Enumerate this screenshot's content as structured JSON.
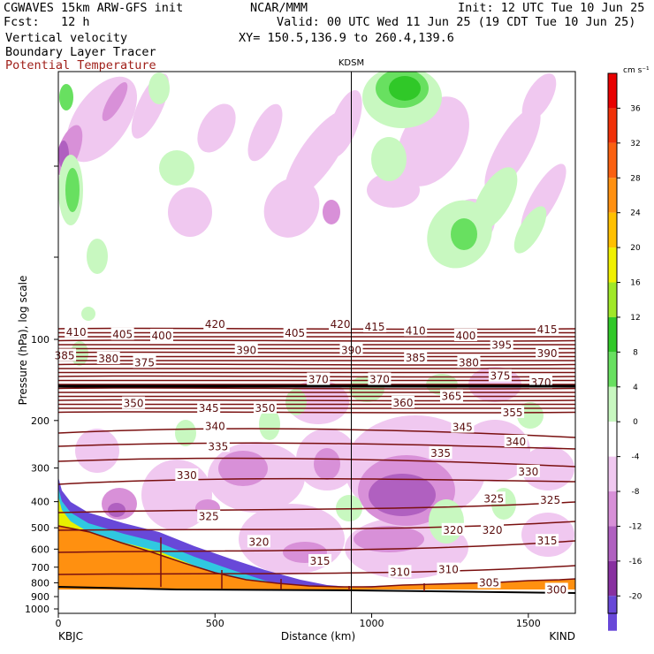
{
  "header": {
    "model": "CGWAVES 15km ARW-GFS init",
    "fcst": "Fcst:   12 h",
    "var1": "Vertical velocity",
    "var2": "Boundary Layer Tracer",
    "var3": "Potential Temperature",
    "org": "NCAR/MMM",
    "valid": "Valid: 00 UTC Wed 11 Jun 25 (19 CDT Tue 10 Jun 25)",
    "xy": "XY= 150.5,136.9 to 260.4,139.6",
    "init": "Init: 12 UTC Tue 10 Jun 25"
  },
  "chart_data": {
    "type": "heatmap",
    "xlabel": "Distance (km)",
    "ylabel": "Pressure (hPa), log scale",
    "x_ticks": [
      "0",
      "500",
      "1000",
      "1500"
    ],
    "x_tick_values": [
      0,
      500,
      1000,
      1500
    ],
    "xlim": [
      0,
      1650
    ],
    "y_ticks": [
      "100",
      "200",
      "300",
      "400",
      "500",
      "600",
      "700",
      "800",
      "900",
      "1000"
    ],
    "y_tick_values": [
      100,
      200,
      300,
      400,
      500,
      600,
      700,
      800,
      900,
      1000
    ],
    "y_scale": "log",
    "station_left": "KBJC",
    "station_right": "KIND",
    "station_mid": "KDSM",
    "station_mid_km": 935,
    "colorbar": {
      "unit": "cm s⁻¹",
      "ticks": [
        "36",
        "32",
        "28",
        "24",
        "20",
        "16",
        "12",
        "8",
        "4",
        "0",
        "-4",
        "-8",
        "-12",
        "-16",
        "-20"
      ],
      "tick_values": [
        36,
        32,
        28,
        24,
        20,
        16,
        12,
        8,
        4,
        0,
        -4,
        -8,
        -12,
        -16,
        -20
      ],
      "range": [
        -22,
        40
      ],
      "colors": {
        "38": "#e80000",
        "34": "#f03008",
        "30": "#fa6010",
        "26": "#ff9010",
        "22": "#ffc000",
        "18": "#f0f000",
        "14": "#a0e828",
        "10": "#30c828",
        "6": "#68e060",
        "2": "#c8f8c0",
        "-2": "#ffffff",
        "-6": "#f0c8f0",
        "-10": "#d890d8",
        "-14": "#b060c0",
        "-18": "#8830a0",
        "-22": "#6848d8"
      }
    },
    "theta_labels": [
      {
        "x": 57,
        "p": 94,
        "text": "410"
      },
      {
        "x": 205,
        "p": 96,
        "text": "405"
      },
      {
        "x": 330,
        "p": 97,
        "text": "400"
      },
      {
        "x": 500,
        "p": 88,
        "text": "420"
      },
      {
        "x": 755,
        "p": 95,
        "text": "405"
      },
      {
        "x": 900,
        "p": 88,
        "text": "420"
      },
      {
        "x": 1010,
        "p": 90,
        "text": "415"
      },
      {
        "x": 1140,
        "p": 93,
        "text": "410"
      },
      {
        "x": 1300,
        "p": 97,
        "text": "400"
      },
      {
        "x": 1560,
        "p": 92,
        "text": "415"
      },
      {
        "x": 20,
        "p": 115,
        "text": "385"
      },
      {
        "x": 160,
        "p": 118,
        "text": "380"
      },
      {
        "x": 275,
        "p": 122,
        "text": "375"
      },
      {
        "x": 600,
        "p": 110,
        "text": "390"
      },
      {
        "x": 935,
        "p": 110,
        "text": "390"
      },
      {
        "x": 1140,
        "p": 117,
        "text": "385"
      },
      {
        "x": 1310,
        "p": 122,
        "text": "380"
      },
      {
        "x": 1415,
        "p": 105,
        "text": "395"
      },
      {
        "x": 1560,
        "p": 113,
        "text": "390"
      },
      {
        "x": 830,
        "p": 141,
        "text": "370"
      },
      {
        "x": 1025,
        "p": 141,
        "text": "370"
      },
      {
        "x": 1410,
        "p": 137,
        "text": "375"
      },
      {
        "x": 1540,
        "p": 145,
        "text": "370"
      },
      {
        "x": 240,
        "p": 173,
        "text": "350"
      },
      {
        "x": 480,
        "p": 180,
        "text": "345"
      },
      {
        "x": 660,
        "p": 180,
        "text": "350"
      },
      {
        "x": 1100,
        "p": 172,
        "text": "360"
      },
      {
        "x": 1255,
        "p": 163,
        "text": "365"
      },
      {
        "x": 1450,
        "p": 187,
        "text": "355"
      },
      {
        "x": 500,
        "p": 210,
        "text": "340"
      },
      {
        "x": 1290,
        "p": 212,
        "text": "345"
      },
      {
        "x": 1460,
        "p": 240,
        "text": "340"
      },
      {
        "x": 510,
        "p": 250,
        "text": "335"
      },
      {
        "x": 1220,
        "p": 265,
        "text": "335"
      },
      {
        "x": 410,
        "p": 320,
        "text": "330"
      },
      {
        "x": 1500,
        "p": 310,
        "text": "330"
      },
      {
        "x": 480,
        "p": 455,
        "text": "325"
      },
      {
        "x": 1390,
        "p": 390,
        "text": "325"
      },
      {
        "x": 1570,
        "p": 395,
        "text": "325"
      },
      {
        "x": 640,
        "p": 565,
        "text": "320"
      },
      {
        "x": 1260,
        "p": 510,
        "text": "320"
      },
      {
        "x": 1385,
        "p": 510,
        "text": "320"
      },
      {
        "x": 1560,
        "p": 560,
        "text": "315"
      },
      {
        "x": 835,
        "p": 665,
        "text": "315"
      },
      {
        "x": 1090,
        "p": 730,
        "text": "310"
      },
      {
        "x": 1245,
        "p": 715,
        "text": "310"
      },
      {
        "x": 1375,
        "p": 800,
        "text": "305"
      },
      {
        "x": 1590,
        "p": 850,
        "text": "300"
      }
    ]
  }
}
